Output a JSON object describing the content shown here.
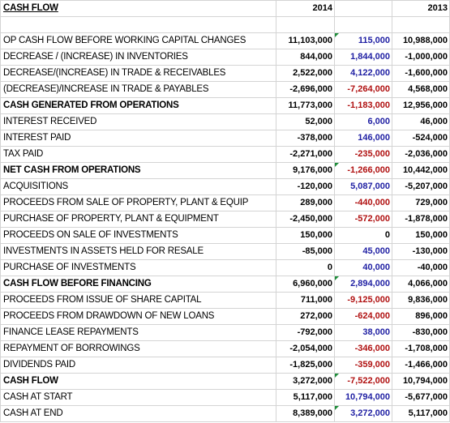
{
  "header": {
    "title": "CASH FLOW",
    "col_2014": "2014",
    "col_2013": "2013"
  },
  "rows": [
    {
      "label": "OP CASH FLOW BEFORE WORKING CAPITAL CHANGES",
      "v2014": "11,103,000",
      "chg": "115,000",
      "chg_sign": "pos",
      "v2013": "10,988,000",
      "bold": false,
      "marker": true
    },
    {
      "label": "DECREASE / (INCREASE) IN INVENTORIES",
      "v2014": "844,000",
      "chg": "1,844,000",
      "chg_sign": "pos",
      "v2013": "-1,000,000",
      "bold": false,
      "marker": false
    },
    {
      "label": "DECREASE/(INCREASE) IN TRADE & RECEIVABLES",
      "v2014": "2,522,000",
      "chg": "4,122,000",
      "chg_sign": "pos",
      "v2013": "-1,600,000",
      "bold": false,
      "marker": false
    },
    {
      "label": "(DECREASE)/INCREASE IN TRADE & PAYABLES",
      "v2014": "-2,696,000",
      "chg": "-7,264,000",
      "chg_sign": "neg",
      "v2013": "4,568,000",
      "bold": false,
      "marker": false
    },
    {
      "label": "CASH GENERATED FROM OPERATIONS",
      "v2014": "11,773,000",
      "chg": "-1,183,000",
      "chg_sign": "neg",
      "v2013": "12,956,000",
      "bold": true,
      "marker": false
    },
    {
      "label": "INTEREST RECEIVED",
      "v2014": "52,000",
      "chg": "6,000",
      "chg_sign": "pos",
      "v2013": "46,000",
      "bold": false,
      "marker": false
    },
    {
      "label": "INTEREST PAID",
      "v2014": "-378,000",
      "chg": "146,000",
      "chg_sign": "pos",
      "v2013": "-524,000",
      "bold": false,
      "marker": false
    },
    {
      "label": "TAX PAID",
      "v2014": "-2,271,000",
      "chg": "-235,000",
      "chg_sign": "neg",
      "v2013": "-2,036,000",
      "bold": false,
      "marker": false
    },
    {
      "label": "NET CASH FROM OPERATIONS",
      "v2014": "9,176,000",
      "chg": "-1,266,000",
      "chg_sign": "neg",
      "v2013": "10,442,000",
      "bold": true,
      "marker": true
    },
    {
      "label": "ACQUISITIONS",
      "v2014": "-120,000",
      "chg": "5,087,000",
      "chg_sign": "pos",
      "v2013": "-5,207,000",
      "bold": false,
      "marker": false
    },
    {
      "label": "PROCEEDS FROM SALE OF PROPERTY, PLANT & EQUIP",
      "v2014": "289,000",
      "chg": "-440,000",
      "chg_sign": "neg",
      "v2013": "729,000",
      "bold": false,
      "marker": false
    },
    {
      "label": "PURCHASE OF PROPERTY, PLANT & EQUIPMENT",
      "v2014": "-2,450,000",
      "chg": "-572,000",
      "chg_sign": "neg",
      "v2013": "-1,878,000",
      "bold": false,
      "marker": false
    },
    {
      "label": "PROCEEDS ON SALE OF INVESTMENTS",
      "v2014": "150,000",
      "chg": "0",
      "chg_sign": "zero",
      "v2013": "150,000",
      "bold": false,
      "marker": false
    },
    {
      "label": "INVESTMENTS IN ASSETS HELD FOR RESALE",
      "v2014": "-85,000",
      "chg": "45,000",
      "chg_sign": "pos",
      "v2013": "-130,000",
      "bold": false,
      "marker": false
    },
    {
      "label": "PURCHASE OF INVESTMENTS",
      "v2014": "0",
      "chg": "40,000",
      "chg_sign": "pos",
      "v2013": "-40,000",
      "bold": false,
      "marker": false
    },
    {
      "label": "CASH FLOW BEFORE FINANCING",
      "v2014": "6,960,000",
      "chg": "2,894,000",
      "chg_sign": "pos",
      "v2013": "4,066,000",
      "bold": true,
      "marker": true
    },
    {
      "label": "PROCEEDS FROM ISSUE OF SHARE CAPITAL",
      "v2014": "711,000",
      "chg": "-9,125,000",
      "chg_sign": "neg",
      "v2013": "9,836,000",
      "bold": false,
      "marker": false
    },
    {
      "label": "PROCEEDS FROM DRAWDOWN OF NEW LOANS",
      "v2014": "272,000",
      "chg": "-624,000",
      "chg_sign": "neg",
      "v2013": "896,000",
      "bold": false,
      "marker": false
    },
    {
      "label": "FINANCE LEASE REPAYMENTS",
      "v2014": "-792,000",
      "chg": "38,000",
      "chg_sign": "pos",
      "v2013": "-830,000",
      "bold": false,
      "marker": false
    },
    {
      "label": "REPAYMENT OF BORROWINGS",
      "v2014": "-2,054,000",
      "chg": "-346,000",
      "chg_sign": "neg",
      "v2013": "-1,708,000",
      "bold": false,
      "marker": false
    },
    {
      "label": "DIVIDENDS PAID",
      "v2014": "-1,825,000",
      "chg": "-359,000",
      "chg_sign": "neg",
      "v2013": "-1,466,000",
      "bold": false,
      "marker": false
    },
    {
      "label": "CASH FLOW",
      "v2014": "3,272,000",
      "chg": "-7,522,000",
      "chg_sign": "neg",
      "v2013": "10,794,000",
      "bold": true,
      "marker": true
    },
    {
      "label": "CASH AT START",
      "v2014": "5,117,000",
      "chg": "10,794,000",
      "chg_sign": "pos",
      "v2013": "-5,677,000",
      "bold": false,
      "marker": false
    },
    {
      "label": "CASH AT END",
      "v2014": "8,389,000",
      "chg": "3,272,000",
      "chg_sign": "pos",
      "v2013": "5,117,000",
      "bold": false,
      "marker": true
    }
  ],
  "colors": {
    "positive_change": "#1f1fa3",
    "negative_change": "#b01010",
    "comment_marker": "#1e8c3a",
    "gridline": "#d4d4d4"
  }
}
